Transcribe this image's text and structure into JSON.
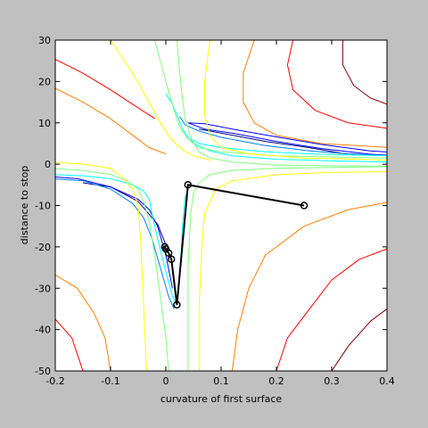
{
  "chart_data": {
    "type": "contour",
    "title": "",
    "xlabel": "curvature of first surface",
    "ylabel": "distance to stop",
    "xlim": [
      -0.2,
      0.4
    ],
    "ylim": [
      -50,
      30
    ],
    "xticks": [
      -0.2,
      -0.1,
      0,
      0.1,
      0.2,
      0.3,
      0.4
    ],
    "yticks": [
      -50,
      -40,
      -30,
      -20,
      -10,
      0,
      10,
      20,
      30
    ],
    "xtick_labels": [
      "-0.2",
      "-0.1",
      "0",
      "0.1",
      "0.2",
      "0.3",
      "0.4"
    ],
    "ytick_labels": [
      "-50",
      "-40",
      "-30",
      "-20",
      "-10",
      "0",
      "10",
      "20",
      "30"
    ],
    "background_color": "#c0c0c0",
    "axes_color": "#ffffff",
    "contour_colormap": [
      "#00007f",
      "#0000ff",
      "#007fff",
      "#00ffff",
      "#7fff7f",
      "#ffff00",
      "#ff7f00",
      "#ff0000",
      "#7f0000"
    ],
    "path_color": "#000000",
    "optimization_path": [
      {
        "x": 0.25,
        "y": -10
      },
      {
        "x": 0.04,
        "y": -5
      },
      {
        "x": 0.02,
        "y": -34
      },
      {
        "x": 0.01,
        "y": -23
      },
      {
        "x": 0.005,
        "y": -21.5
      },
      {
        "x": 0.0,
        "y": -20.5
      },
      {
        "x": -0.002,
        "y": -20
      }
    ],
    "contours": [
      {
        "level": 1,
        "color": "#00007f",
        "lines": [
          [
            [
              0.06,
              8.5
            ],
            [
              0.1,
              7.5
            ],
            [
              0.18,
              5.5
            ],
            [
              0.26,
              4
            ],
            [
              0.32,
              2.6
            ],
            [
              0.36,
              2.3
            ]
          ],
          [
            [
              -0.15,
              -4.5
            ],
            [
              -0.1,
              -5.5
            ],
            [
              -0.05,
              -9.0
            ],
            [
              -0.015,
              -14.5
            ],
            [
              0.0,
              -19.5
            ]
          ]
        ]
      },
      {
        "level": 2,
        "color": "#0000ff",
        "lines": [
          [
            [
              0.04,
              10.0
            ],
            [
              0.07,
              8.5
            ],
            [
              0.12,
              7.5
            ],
            [
              0.2,
              5.5
            ],
            [
              0.28,
              3.8
            ],
            [
              0.37,
              2.4
            ],
            [
              0.41,
              2.1
            ]
          ],
          [
            [
              0.41,
              2.9
            ],
            [
              0.37,
              3.2
            ],
            [
              0.28,
              4.8
            ],
            [
              0.2,
              6.6
            ],
            [
              0.12,
              8.5
            ],
            [
              0.07,
              9.8
            ],
            [
              0.04,
              10.0
            ]
          ],
          [
            [
              -0.21,
              -3.0
            ],
            [
              -0.16,
              -3.5
            ],
            [
              -0.1,
              -5.5
            ],
            [
              -0.05,
              -8.5
            ],
            [
              -0.03,
              -11.0
            ],
            [
              -0.015,
              -15.0
            ],
            [
              0.0,
              -22.0
            ],
            [
              0.012,
              -30.0
            ]
          ]
        ]
      },
      {
        "level": 3,
        "color": "#007fff",
        "lines": [
          [
            [
              0.025,
              11.5
            ],
            [
              0.035,
              9.5
            ],
            [
              0.06,
              8.0
            ],
            [
              0.1,
              6.5
            ],
            [
              0.18,
              4.5
            ],
            [
              0.26,
              3.2
            ],
            [
              0.34,
              2.4
            ],
            [
              0.41,
              2.0
            ]
          ],
          [
            [
              -0.21,
              -3.5
            ],
            [
              -0.15,
              -4.0
            ],
            [
              -0.1,
              -6.0
            ],
            [
              -0.06,
              -9.5
            ],
            [
              -0.04,
              -13.0
            ],
            [
              -0.025,
              -18.0
            ],
            [
              -0.01,
              -25.0
            ],
            [
              0.005,
              -32.0
            ],
            [
              0.015,
              -35.0
            ]
          ]
        ]
      },
      {
        "level": 4,
        "color": "#00ffff",
        "lines": [
          [
            [
              0.0,
              17.0
            ],
            [
              0.01,
              15.0
            ],
            [
              0.02,
              12.0
            ],
            [
              0.03,
              8.5
            ],
            [
              0.04,
              6.5
            ],
            [
              0.06,
              5.0
            ],
            [
              0.1,
              4.0
            ],
            [
              0.18,
              3.0
            ],
            [
              0.28,
              2.4
            ],
            [
              0.41,
              2.0
            ]
          ],
          [
            [
              0.41,
              0.5
            ],
            [
              0.3,
              0.8
            ],
            [
              0.2,
              1.2
            ],
            [
              0.12,
              2.0
            ],
            [
              0.08,
              3.2
            ],
            [
              0.05,
              5.0
            ],
            [
              0.045,
              6.0
            ]
          ],
          [
            [
              -0.21,
              -2.5
            ],
            [
              -0.15,
              -2.8
            ],
            [
              -0.1,
              -3.5
            ],
            [
              -0.06,
              -5.0
            ],
            [
              -0.04,
              -6.5
            ],
            [
              -0.03,
              -8.5
            ],
            [
              -0.025,
              -12.0
            ],
            [
              -0.015,
              -18.0
            ],
            [
              0.0,
              -26.0
            ],
            [
              0.012,
              -32.0
            ],
            [
              0.02,
              -34.0
            ],
            [
              0.025,
              -28.0
            ],
            [
              0.03,
              -15.0
            ],
            [
              0.035,
              -8.0
            ],
            [
              0.04,
              -6.0
            ]
          ]
        ]
      },
      {
        "level": 5,
        "color": "#7fff7f",
        "lines": [
          [
            [
              -0.02,
              30.0
            ],
            [
              -0.01,
              25.0
            ],
            [
              0.0,
              20.0
            ],
            [
              0.015,
              13.0
            ],
            [
              0.025,
              9.0
            ],
            [
              0.04,
              6.0
            ],
            [
              0.06,
              4.0
            ],
            [
              0.1,
              3.0
            ],
            [
              0.2,
              2.0
            ],
            [
              0.41,
              1.5
            ]
          ],
          [
            [
              0.41,
              -0.5
            ],
            [
              0.3,
              -0.4
            ],
            [
              0.2,
              -0.2
            ],
            [
              0.12,
              0.5
            ],
            [
              0.08,
              1.5
            ],
            [
              0.06,
              3.0
            ],
            [
              0.045,
              6.5
            ],
            [
              0.035,
              11.0
            ],
            [
              0.03,
              16.0
            ],
            [
              0.025,
              22.0
            ],
            [
              0.02,
              30.0
            ]
          ],
          [
            [
              -0.21,
              -1.0
            ],
            [
              -0.15,
              -1.5
            ],
            [
              -0.1,
              -2.5
            ],
            [
              -0.07,
              -4.0
            ],
            [
              -0.05,
              -6.0
            ],
            [
              -0.04,
              -9.0
            ],
            [
              -0.03,
              -14.0
            ],
            [
              -0.02,
              -22.0
            ],
            [
              -0.01,
              -32.0
            ],
            [
              0.0,
              -42.0
            ],
            [
              0.005,
              -50.0
            ]
          ],
          [
            [
              0.04,
              -50.0
            ],
            [
              0.04,
              -40.0
            ],
            [
              0.04,
              -25.0
            ],
            [
              0.045,
              -12.0
            ],
            [
              0.05,
              -7.0
            ],
            [
              0.06,
              -4.5
            ],
            [
              0.08,
              -2.5
            ],
            [
              0.12,
              -1.5
            ],
            [
              0.2,
              -1.0
            ],
            [
              0.3,
              -0.8
            ],
            [
              0.41,
              -0.6
            ]
          ]
        ]
      },
      {
        "level": 6,
        "color": "#ffff00",
        "lines": [
          [
            [
              -0.1,
              30.0
            ],
            [
              -0.06,
              22.0
            ],
            [
              -0.03,
              15.0
            ],
            [
              -0.01,
              10.0
            ],
            [
              0.01,
              6.0
            ],
            [
              0.03,
              3.5
            ],
            [
              0.05,
              2.0
            ],
            [
              0.08,
              1.0
            ]
          ],
          [
            [
              0.08,
              30.0
            ],
            [
              0.07,
              20.0
            ],
            [
              0.07,
              12.0
            ],
            [
              0.08,
              7.0
            ],
            [
              0.1,
              4.0
            ],
            [
              0.15,
              2.5
            ],
            [
              0.25,
              1.5
            ],
            [
              0.41,
              1.0
            ]
          ],
          [
            [
              -0.21,
              0.5
            ],
            [
              -0.15,
              0.0
            ],
            [
              -0.1,
              -1.0
            ],
            [
              -0.08,
              -3.0
            ],
            [
              -0.06,
              -6.0
            ],
            [
              -0.05,
              -10.0
            ],
            [
              -0.045,
              -20.0
            ],
            [
              -0.04,
              -35.0
            ],
            [
              -0.035,
              -50.0
            ]
          ],
          [
            [
              0.06,
              -50.0
            ],
            [
              0.06,
              -35.0
            ],
            [
              0.065,
              -20.0
            ],
            [
              0.07,
              -12.0
            ],
            [
              0.09,
              -6.0
            ],
            [
              0.12,
              -4.0
            ],
            [
              0.2,
              -2.5
            ],
            [
              0.3,
              -2.0
            ],
            [
              0.41,
              -1.8
            ]
          ]
        ]
      },
      {
        "level": 7,
        "color": "#ff7f00",
        "lines": [
          [
            [
              -0.21,
              19.0
            ],
            [
              -0.15,
              15.0
            ],
            [
              -0.1,
              11.0
            ],
            [
              -0.06,
              7.0
            ],
            [
              -0.03,
              4.0
            ],
            [
              0.0,
              2.5
            ]
          ],
          [
            [
              0.16,
              30.0
            ],
            [
              0.14,
              22.0
            ],
            [
              0.14,
              15.0
            ],
            [
              0.16,
              10.0
            ],
            [
              0.2,
              7.0
            ],
            [
              0.28,
              5.0
            ],
            [
              0.41,
              4.0
            ]
          ],
          [
            [
              -0.21,
              -26.0
            ],
            [
              -0.16,
              -30.0
            ],
            [
              -0.13,
              -36.0
            ],
            [
              -0.11,
              -42.0
            ],
            [
              -0.1,
              -50.0
            ]
          ],
          [
            [
              0.12,
              -50.0
            ],
            [
              0.13,
              -40.0
            ],
            [
              0.15,
              -30.0
            ],
            [
              0.18,
              -22.0
            ],
            [
              0.25,
              -15.0
            ],
            [
              0.33,
              -11.0
            ],
            [
              0.41,
              -9.0
            ]
          ]
        ]
      },
      {
        "level": 8,
        "color": "#ff0000",
        "lines": [
          [
            [
              -0.21,
              26.0
            ],
            [
              -0.15,
              22.0
            ],
            [
              -0.1,
              18.0
            ],
            [
              -0.06,
              14.5
            ],
            [
              -0.02,
              11.0
            ]
          ],
          [
            [
              0.23,
              30.0
            ],
            [
              0.22,
              24.0
            ],
            [
              0.23,
              18.0
            ],
            [
              0.27,
              13.0
            ],
            [
              0.33,
              10.0
            ],
            [
              0.41,
              8.5
            ]
          ],
          [
            [
              -0.21,
              -36.0
            ],
            [
              -0.17,
              -42.0
            ],
            [
              -0.15,
              -50.0
            ]
          ],
          [
            [
              0.2,
              -50.0
            ],
            [
              0.22,
              -42.0
            ],
            [
              0.26,
              -35.0
            ],
            [
              0.3,
              -28.0
            ],
            [
              0.35,
              -23.0
            ],
            [
              0.41,
              -20.0
            ]
          ]
        ]
      },
      {
        "level": 9,
        "color": "#7f0000",
        "lines": [
          [
            [
              0.32,
              30.0
            ],
            [
              0.32,
              24.0
            ],
            [
              0.34,
              19.0
            ],
            [
              0.37,
              16.0
            ],
            [
              0.41,
              14.0
            ]
          ],
          [
            [
              0.3,
              -50.0
            ],
            [
              0.33,
              -44.0
            ],
            [
              0.37,
              -38.0
            ],
            [
              0.41,
              -34.0
            ]
          ]
        ]
      }
    ]
  }
}
